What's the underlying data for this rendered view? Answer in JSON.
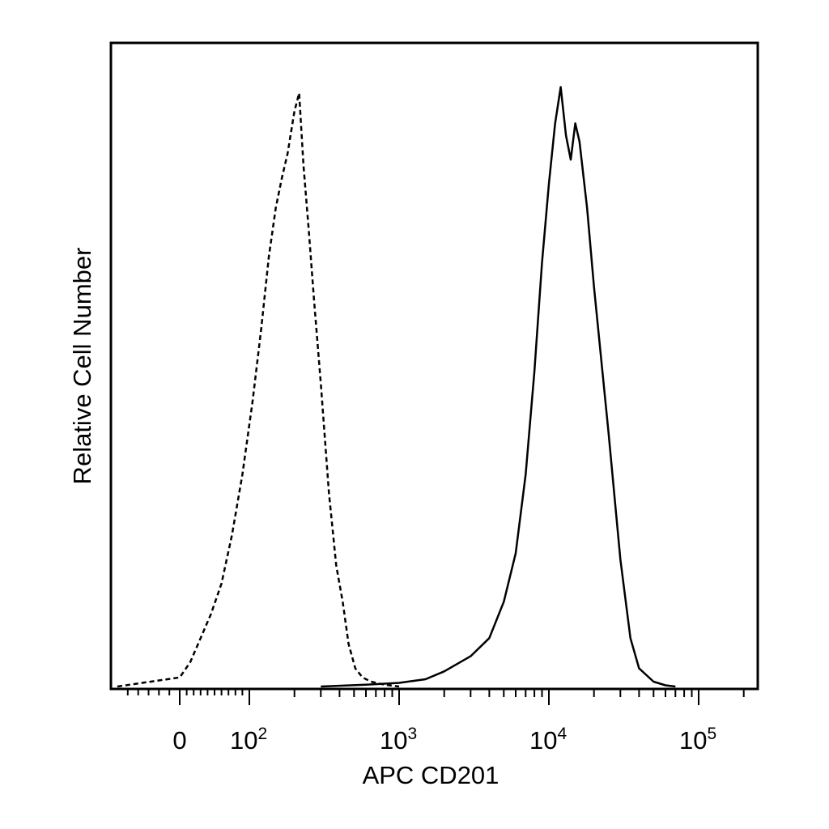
{
  "chart_data": {
    "type": "line",
    "title": "",
    "xlabel": "APC CD201",
    "ylabel": "Relative Cell Number",
    "x_scale": "biexponential",
    "xlim": [
      -60,
      250000
    ],
    "ylim": [
      0,
      1
    ],
    "grid": false,
    "x_tick_labels": [
      {
        "value": 0,
        "base": "0",
        "exp": ""
      },
      {
        "value": 100,
        "base": "10",
        "exp": "2"
      },
      {
        "value": 1000,
        "base": "10",
        "exp": "3"
      },
      {
        "value": 10000,
        "base": "10",
        "exp": "4"
      },
      {
        "value": 100000,
        "base": "10",
        "exp": "5"
      }
    ],
    "series": [
      {
        "style": "dashed",
        "x": [
          -60,
          -20,
          0,
          15,
          30,
          45,
          60,
          75,
          90,
          105,
          120,
          135,
          150,
          165,
          180,
          200,
          215,
          230,
          250,
          270,
          300,
          340,
          380,
          420,
          460,
          510,
          570,
          650,
          800,
          1000
        ],
        "y": [
          0.0,
          0.01,
          0.015,
          0.04,
          0.08,
          0.12,
          0.17,
          0.25,
          0.35,
          0.47,
          0.59,
          0.71,
          0.79,
          0.84,
          0.88,
          0.95,
          0.98,
          0.86,
          0.75,
          0.64,
          0.5,
          0.32,
          0.2,
          0.14,
          0.07,
          0.03,
          0.015,
          0.008,
          0.003,
          0.0
        ]
      },
      {
        "style": "solid",
        "x": [
          300,
          600,
          1000,
          1500,
          2000,
          3000,
          4000,
          5000,
          6000,
          7000,
          8000,
          9000,
          10000,
          11000,
          12000,
          13000,
          14000,
          15000,
          16000,
          18000,
          20000,
          25000,
          30000,
          35000,
          40000,
          50000,
          60000,
          70000
        ],
        "y": [
          0.0,
          0.003,
          0.006,
          0.012,
          0.025,
          0.05,
          0.08,
          0.14,
          0.22,
          0.35,
          0.52,
          0.7,
          0.83,
          0.93,
          0.99,
          0.91,
          0.87,
          0.93,
          0.9,
          0.79,
          0.66,
          0.42,
          0.21,
          0.08,
          0.03,
          0.008,
          0.002,
          0.0
        ]
      }
    ]
  }
}
